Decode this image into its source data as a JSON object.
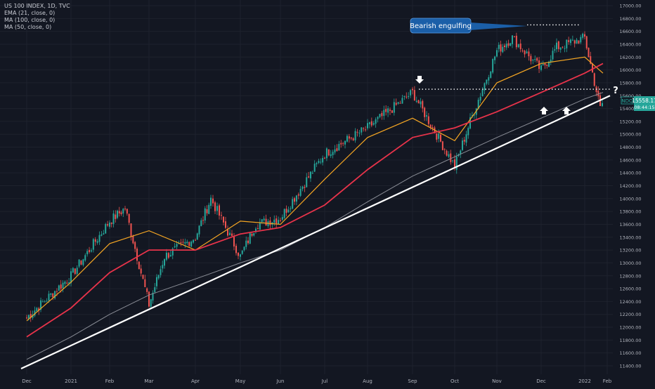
{
  "legend": {
    "title": "US 100 INDEX, 1D, TVC",
    "indicators": [
      "EMA (21, close, 0)",
      "MA (100, close, 0)",
      "MA (50, close, 0)"
    ]
  },
  "price_tag": {
    "symbol": "NDQ",
    "price": "15558.17",
    "countdown": "08:44:15"
  },
  "annotations": {
    "callout": "Bearish engulfing",
    "question": "?"
  },
  "colors": {
    "background": "#131722",
    "grid": "#1e222d",
    "up": "#26a69a",
    "down": "#ef5350",
    "ema21": "#f5a623",
    "ma50": "#e8334a",
    "ma100": "#8a8d96",
    "trendline": "#ffffff",
    "callout_bg": "#1b5fa8",
    "price_tag": "#26a69a",
    "axis_text": "#b2b5be"
  },
  "chart_data": {
    "type": "candlestick",
    "x_labels": [
      "Dec",
      "2021",
      "Feb",
      "Mar",
      "Apr",
      "May",
      "Jun",
      "Jul",
      "Aug",
      "Sep",
      "Oct",
      "Nov",
      "Dec",
      "2022",
      "Feb"
    ],
    "ylim": [
      11400,
      17000
    ],
    "y_ticks": [
      11400,
      11600,
      11800,
      12000,
      12200,
      12400,
      12600,
      12800,
      13000,
      13200,
      13400,
      13600,
      13800,
      14000,
      14200,
      14400,
      14600,
      14800,
      15000,
      15200,
      15400,
      15600,
      15800,
      16000,
      16200,
      16400,
      16600,
      16800,
      17000
    ],
    "close_path": [
      [
        "Dec",
        12150
      ],
      [
        "2021",
        12800
      ],
      [
        "Feb",
        13650
      ],
      [
        "Feb",
        13850
      ],
      [
        "Mar",
        12350
      ],
      [
        "Mar",
        13100
      ],
      [
        "Apr",
        13400
      ],
      [
        "Apr",
        14000
      ],
      [
        "May",
        13100
      ],
      [
        "May",
        13600
      ],
      [
        "Jun",
        13700
      ],
      [
        "Jul",
        14700
      ],
      [
        "Aug",
        15100
      ],
      [
        "Sep",
        15650
      ],
      [
        "Oct",
        14500
      ],
      [
        "Oct",
        15200
      ],
      [
        "Nov",
        16300
      ],
      [
        "Nov",
        16500
      ],
      [
        "Dec",
        16000
      ],
      [
        "Dec",
        16350
      ],
      [
        "2022",
        16500
      ],
      [
        "2022",
        15400
      ],
      [
        "2022",
        15558
      ]
    ],
    "series": [
      {
        "name": "EMA (21, close, 0)",
        "points": [
          [
            "Dec",
            12100
          ],
          [
            "2021",
            12700
          ],
          [
            "Feb",
            13300
          ],
          [
            "Mar",
            13500
          ],
          [
            "Apr",
            13200
          ],
          [
            "May",
            13650
          ],
          [
            "Jun",
            13600
          ],
          [
            "Jul",
            14300
          ],
          [
            "Aug",
            14950
          ],
          [
            "Sep",
            15250
          ],
          [
            "Oct",
            14900
          ],
          [
            "Nov",
            15800
          ],
          [
            "Dec",
            16100
          ],
          [
            "2022",
            16200
          ],
          [
            "2022",
            15950
          ]
        ]
      },
      {
        "name": "MA (50, close, 0)",
        "points": [
          [
            "Dec",
            11850
          ],
          [
            "2021",
            12300
          ],
          [
            "Feb",
            12850
          ],
          [
            "Mar",
            13200
          ],
          [
            "Apr",
            13200
          ],
          [
            "May",
            13450
          ],
          [
            "Jun",
            13550
          ],
          [
            "Jul",
            13900
          ],
          [
            "Aug",
            14450
          ],
          [
            "Sep",
            14950
          ],
          [
            "Oct",
            15100
          ],
          [
            "Nov",
            15350
          ],
          [
            "Dec",
            15650
          ],
          [
            "2022",
            15950
          ],
          [
            "2022",
            16100
          ]
        ]
      },
      {
        "name": "MA (100, close, 0)",
        "points": [
          [
            "Dec",
            11500
          ],
          [
            "2021",
            11850
          ],
          [
            "Feb",
            12200
          ],
          [
            "Mar",
            12500
          ],
          [
            "Apr",
            12750
          ],
          [
            "May",
            13000
          ],
          [
            "Jun",
            13200
          ],
          [
            "Jul",
            13550
          ],
          [
            "Aug",
            13950
          ],
          [
            "Sep",
            14350
          ],
          [
            "Oct",
            14650
          ],
          [
            "Nov",
            14950
          ],
          [
            "Dec",
            15250
          ],
          [
            "2022",
            15550
          ],
          [
            "2022",
            15650
          ]
        ]
      }
    ],
    "trendline": {
      "from": [
        "Dec",
        11400
      ],
      "to": [
        "2022",
        15600
      ]
    },
    "levels": [
      16700,
      15700
    ],
    "last_price": 15558.17
  }
}
